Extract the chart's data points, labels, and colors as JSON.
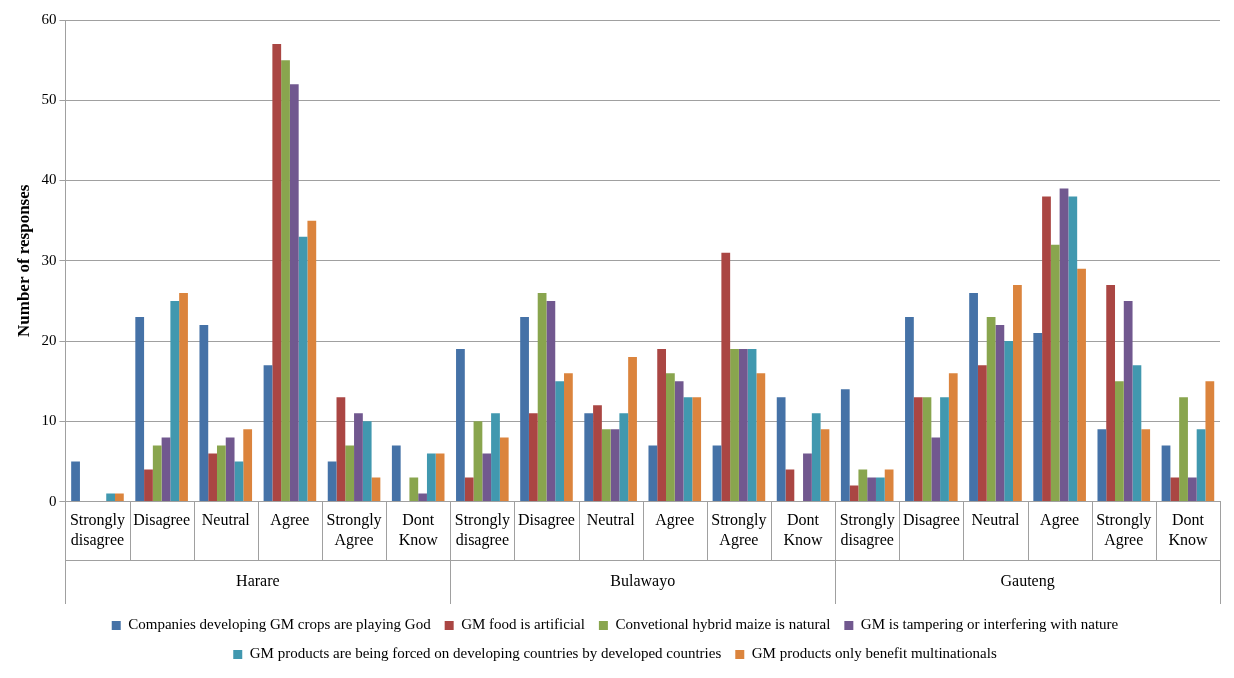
{
  "chart_data": {
    "type": "bar",
    "ylabel": "Number of responses",
    "categories": [
      "Strongly disagree",
      "Disagree",
      "Neutral",
      "Agree",
      "Strongly Agree",
      "Dont Know",
      "Strongly disagree",
      "Disagree",
      "Neutral",
      "Agree",
      "Strongly Agree",
      "Dont Know",
      "Strongly disagree",
      "Disagree",
      "Neutral",
      "Agree",
      "Strongly Agree",
      "Dont Know"
    ],
    "annotations": [
      "Harare",
      "Bulawayo",
      "Gauteng"
    ],
    "series": [
      {
        "name": "Companies developing GM crops are playing God",
        "color": "#4572a7",
        "values": [
          5,
          23,
          22,
          17,
          5,
          7,
          19,
          23,
          11,
          7,
          7,
          13,
          14,
          23,
          26,
          21,
          9,
          7
        ]
      },
      {
        "name": "GM food is artificial",
        "color": "#aa4643",
        "values": [
          0,
          4,
          6,
          57,
          13,
          0,
          3,
          11,
          12,
          19,
          31,
          4,
          2,
          13,
          17,
          38,
          27,
          3
        ]
      },
      {
        "name": "Convetional hybrid maize is natural",
        "color": "#89a54e",
        "values": [
          0,
          7,
          7,
          55,
          7,
          3,
          10,
          26,
          9,
          16,
          19,
          0,
          4,
          13,
          23,
          32,
          15,
          13
        ]
      },
      {
        "name": "GM is tampering or interfering with nature",
        "color": "#71588f",
        "values": [
          0,
          8,
          8,
          52,
          11,
          1,
          6,
          25,
          9,
          15,
          19,
          6,
          3,
          8,
          22,
          39,
          25,
          3
        ]
      },
      {
        "name": "GM products are being forced on developing countries by developed countries",
        "color": "#4198af",
        "values": [
          1,
          25,
          5,
          33,
          10,
          6,
          11,
          15,
          11,
          13,
          19,
          11,
          3,
          13,
          20,
          38,
          17,
          9
        ]
      },
      {
        "name": "GM products only benefit multinationals",
        "color": "#db843d",
        "values": [
          1,
          26,
          9,
          35,
          3,
          6,
          8,
          16,
          18,
          13,
          16,
          9,
          4,
          16,
          27,
          29,
          9,
          15
        ]
      }
    ],
    "ylim": [
      0,
      60
    ],
    "yticks": [
      0,
      10,
      20,
      30,
      40,
      50,
      60
    ],
    "grid": "y",
    "legend": "bottom"
  }
}
